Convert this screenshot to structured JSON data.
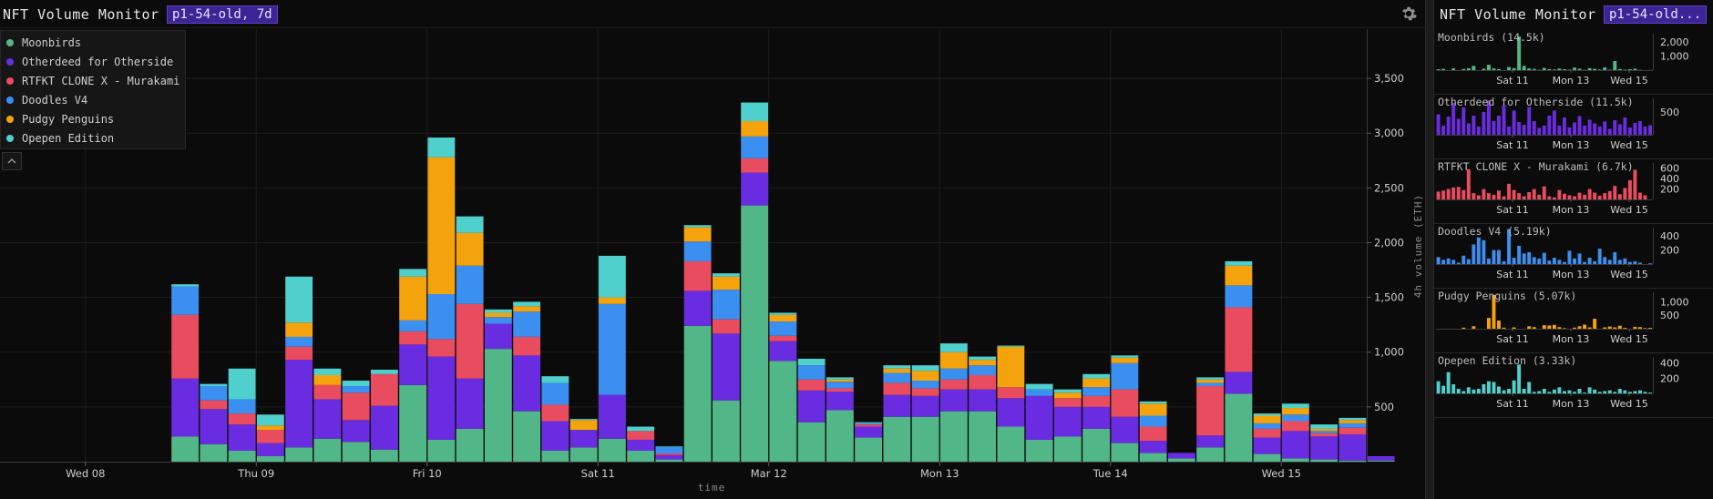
{
  "header": {
    "title": "NFT Volume Monitor",
    "selector": "p1-54-old, 7d"
  },
  "sidebar": {
    "title": "NFT Volume Monitor",
    "selector": "p1-54-old..."
  },
  "legend": [
    {
      "label": "Moonbirds",
      "color": "#52b788"
    },
    {
      "label": "Otherdeed for Otherside",
      "color": "#6a2ce0"
    },
    {
      "label": "RTFKT CLONE X - Murakami",
      "color": "#ea4c5f"
    },
    {
      "label": "Doodles V4",
      "color": "#3a8ff0"
    },
    {
      "label": "Pudgy Penguins",
      "color": "#f5a30c"
    },
    {
      "label": "Opepen Edition",
      "color": "#4fd0cc"
    }
  ],
  "chart_data": {
    "type": "bar",
    "stacked": true,
    "title": "NFT Volume Monitor",
    "xlabel": "time",
    "ylabel": "4h volume (ETH)",
    "ylim": [
      0,
      3950
    ],
    "y_ticks": [
      500,
      1000,
      1500,
      2000,
      2500,
      3000,
      3500
    ],
    "x_tick_labels": [
      "Wed 08",
      "Thu 09",
      "Fri 10",
      "Sat 11",
      "Mar 12",
      "Mon 13",
      "Tue 14",
      "Wed 15"
    ],
    "bucket": "4h",
    "first_bar_index": 6,
    "series": [
      {
        "name": "Moonbirds",
        "color": "#52b788",
        "values": [
          230,
          160,
          100,
          50,
          130,
          210,
          180,
          110,
          700,
          200,
          300,
          1030,
          460,
          100,
          130,
          210,
          100,
          20,
          1240,
          560,
          2340,
          920,
          360,
          470,
          220,
          410,
          410,
          460,
          460,
          320,
          200,
          230,
          300,
          170,
          80,
          30,
          130,
          620,
          70,
          30,
          20,
          10,
          10
        ]
      },
      {
        "name": "Otherdeed for Otherside",
        "color": "#6a2ce0",
        "values": [
          530,
          320,
          240,
          120,
          800,
          360,
          200,
          400,
          370,
          760,
          460,
          230,
          510,
          270,
          160,
          400,
          100,
          40,
          320,
          610,
          300,
          180,
          290,
          170,
          100,
          200,
          190,
          200,
          200,
          260,
          400,
          270,
          200,
          240,
          110,
          50,
          110,
          200,
          150,
          250,
          210,
          240,
          40
        ]
      },
      {
        "name": "RTFKT CLONE X - Murakami",
        "color": "#ea4c5f",
        "values": [
          580,
          80,
          100,
          120,
          120,
          130,
          250,
          290,
          120,
          160,
          680,
          0,
          170,
          150,
          0,
          0,
          80,
          15,
          270,
          130,
          130,
          50,
          100,
          30,
          20,
          110,
          70,
          90,
          130,
          100,
          0,
          80,
          100,
          250,
          130,
          0,
          450,
          590,
          80,
          90,
          30,
          60,
          0
        ]
      },
      {
        "name": "Doodles V4",
        "color": "#3a8ff0",
        "values": [
          260,
          130,
          130,
          0,
          90,
          0,
          60,
          0,
          100,
          410,
          350,
          60,
          230,
          200,
          0,
          830,
          0,
          60,
          180,
          270,
          200,
          130,
          130,
          60,
          10,
          90,
          70,
          100,
          90,
          0,
          60,
          0,
          80,
          240,
          100,
          0,
          30,
          200,
          50,
          60,
          20,
          40,
          0
        ]
      },
      {
        "name": "Pudgy Penguins",
        "color": "#f5a30c",
        "values": [
          0,
          0,
          0,
          40,
          130,
          90,
          0,
          0,
          400,
          1250,
          300,
          40,
          50,
          0,
          90,
          60,
          0,
          0,
          130,
          120,
          140,
          60,
          0,
          20,
          0,
          40,
          90,
          150,
          50,
          370,
          0,
          50,
          80,
          50,
          110,
          0,
          30,
          180,
          70,
          60,
          20,
          30,
          0
        ]
      },
      {
        "name": "Opepen Edition",
        "color": "#4fd0cc",
        "values": [
          20,
          20,
          280,
          100,
          420,
          60,
          50,
          40,
          70,
          180,
          150,
          30,
          40,
          60,
          10,
          380,
          40,
          5,
          20,
          30,
          170,
          20,
          60,
          20,
          10,
          30,
          50,
          80,
          30,
          10,
          50,
          30,
          40,
          20,
          20,
          0,
          20,
          40,
          20,
          40,
          40,
          20,
          0
        ]
      }
    ]
  },
  "small_multiples": [
    {
      "label": "Moonbirds (14.5k)",
      "color": "#52b788",
      "y_ticks": [
        1000,
        2000
      ],
      "y_max": 2600,
      "values": [
        60,
        90,
        0,
        120,
        0,
        80,
        130,
        300,
        0,
        100,
        380,
        120,
        70,
        0,
        220,
        140,
        2400,
        300,
        120,
        90,
        20,
        150,
        60,
        40,
        110,
        60,
        30,
        180,
        100,
        20,
        140,
        90,
        40,
        200,
        30,
        650,
        80,
        30,
        60,
        100,
        20,
        0,
        10
      ],
      "x_tick_labels": [
        "Sat 11",
        "Mon 13",
        "Wed 15"
      ]
    },
    {
      "label": "Otherdeed for Otherside (11.5k)",
      "color": "#6a2ce0",
      "y_ticks": [
        500
      ],
      "y_max": 800,
      "values": [
        450,
        200,
        400,
        700,
        350,
        600,
        250,
        420,
        180,
        500,
        750,
        300,
        420,
        650,
        180,
        530,
        280,
        220,
        610,
        300,
        150,
        200,
        420,
        530,
        200,
        380,
        160,
        270,
        410,
        200,
        330,
        250,
        180,
        290,
        130,
        320,
        230,
        380,
        160,
        260,
        300,
        180,
        210
      ],
      "x_tick_labels": [
        "Sat 11",
        "Mon 13",
        "Wed 15"
      ]
    },
    {
      "label": "RTFKT CLONE X - Murakami (6.7k)",
      "color": "#ea4c5f",
      "y_ticks": [
        200,
        400,
        600
      ],
      "y_max": 700,
      "values": [
        150,
        170,
        200,
        230,
        240,
        180,
        580,
        120,
        80,
        200,
        120,
        90,
        170,
        60,
        300,
        180,
        120,
        60,
        140,
        200,
        90,
        250,
        60,
        40,
        180,
        110,
        80,
        60,
        130,
        90,
        200,
        130,
        70,
        120,
        160,
        260,
        100,
        220,
        370,
        570,
        130,
        80,
        0
      ],
      "x_tick_labels": [
        "Sat 11",
        "Mon 13",
        "Wed 15"
      ]
    },
    {
      "label": "Doodles V4 (5.19k)",
      "color": "#3a8ff0",
      "y_ticks": [
        200,
        400
      ],
      "y_max": 520,
      "values": [
        100,
        60,
        80,
        60,
        20,
        120,
        70,
        280,
        380,
        340,
        80,
        200,
        200,
        40,
        500,
        90,
        260,
        150,
        170,
        100,
        80,
        160,
        50,
        90,
        60,
        30,
        190,
        80,
        150,
        30,
        90,
        40,
        220,
        100,
        60,
        170,
        60,
        80,
        30,
        40,
        20,
        0,
        10
      ],
      "x_tick_labels": [
        "Sat 11",
        "Mon 13",
        "Wed 15"
      ]
    },
    {
      "label": "Pudgy Penguins (5.07k)",
      "color": "#f5a30c",
      "y_ticks": [
        500,
        1000
      ],
      "y_max": 1350,
      "values": [
        0,
        0,
        0,
        0,
        0,
        40,
        0,
        90,
        0,
        0,
        400,
        1250,
        300,
        40,
        0,
        50,
        0,
        0,
        90,
        60,
        0,
        130,
        120,
        140,
        60,
        20,
        0,
        40,
        90,
        150,
        50,
        370,
        0,
        50,
        80,
        50,
        110,
        30,
        0,
        70,
        60,
        20,
        30
      ],
      "x_tick_labels": [
        "Sat 11",
        "Mon 13",
        "Wed 15"
      ]
    },
    {
      "label": "Opepen Edition (3.33k)",
      "color": "#4fd0cc",
      "y_ticks": [
        200,
        400
      ],
      "y_max": 480,
      "values": [
        160,
        100,
        280,
        120,
        60,
        30,
        80,
        50,
        60,
        120,
        160,
        150,
        90,
        40,
        60,
        170,
        380,
        60,
        150,
        20,
        30,
        60,
        20,
        50,
        80,
        30,
        40,
        20,
        60,
        10,
        80,
        50,
        20,
        30,
        40,
        20,
        60,
        40,
        20,
        30,
        40,
        20,
        10
      ],
      "x_tick_labels": [
        "Sat 11",
        "Mon 13",
        "Wed 15"
      ]
    }
  ]
}
